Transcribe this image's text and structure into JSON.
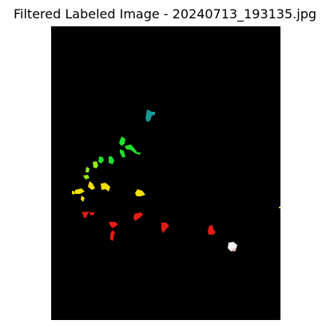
{
  "title": "Filtered Labeled Image - 20240713_193135.jpg",
  "image": {
    "background": "#000000",
    "palette": {
      "teal": "#179a96",
      "green": "#22e02a",
      "lime": "#8ef014",
      "yellow": "#f2e006",
      "red": "#e51c14",
      "white": "#f2f2f2"
    }
  }
}
